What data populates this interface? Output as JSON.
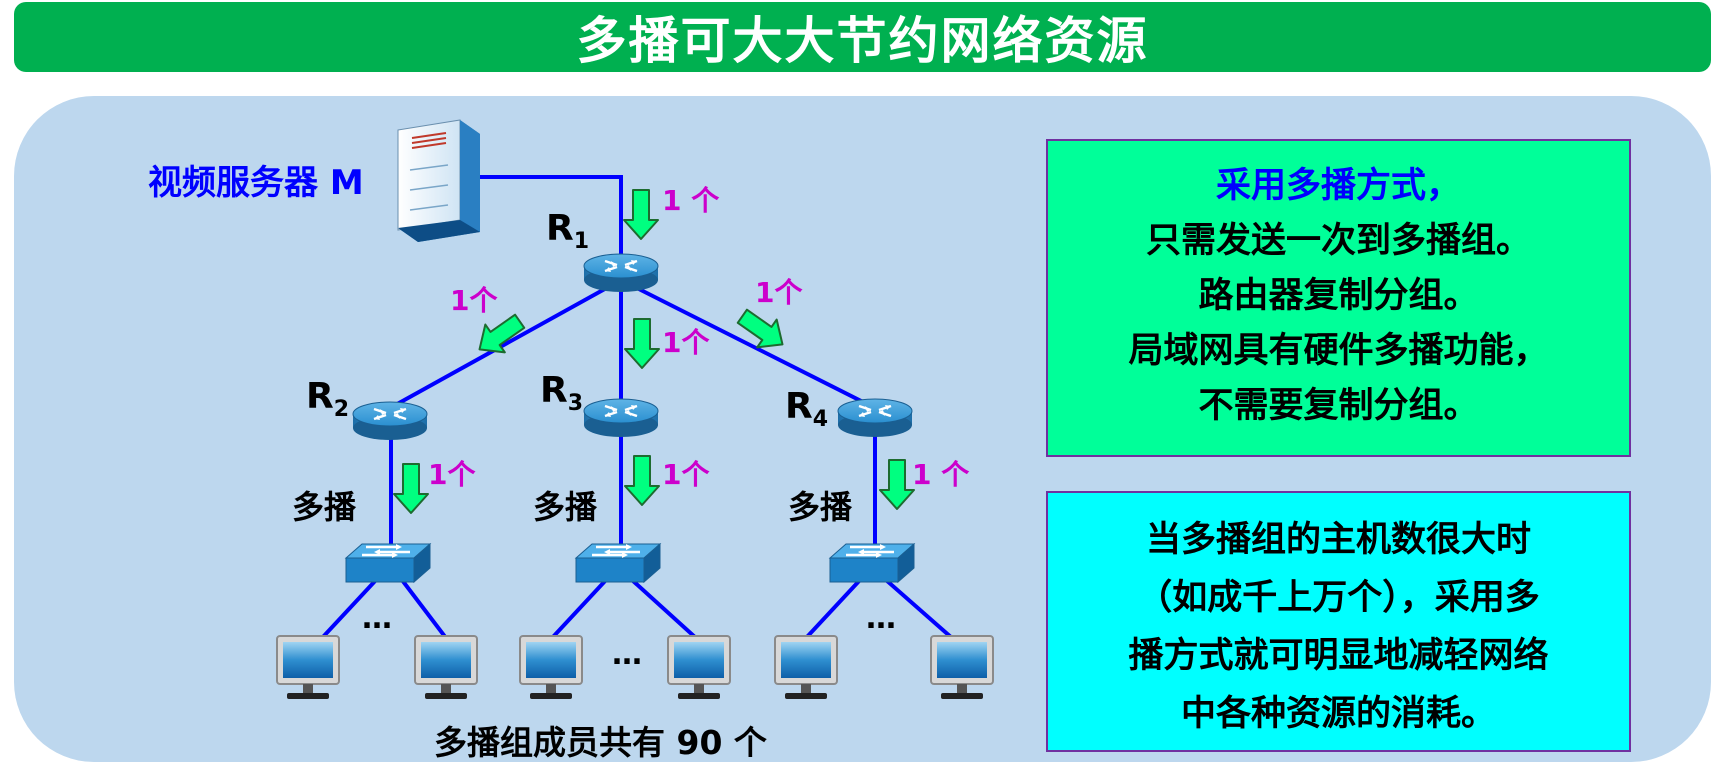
{
  "title": "多播可大大节约网络资源",
  "server_label": "视频服务器 M",
  "routers": {
    "r1": {
      "letter": "R",
      "sub": "1"
    },
    "r2": {
      "letter": "R",
      "sub": "2"
    },
    "r3": {
      "letter": "R",
      "sub": "3"
    },
    "r4": {
      "letter": "R",
      "sub": "4"
    }
  },
  "packet_labels": {
    "m_r1": "1 个",
    "r1_r2": "1个",
    "r1_r3": "1个",
    "r1_r4": "1个",
    "r2_sw": "1个",
    "r3_sw": "1个",
    "r4_sw": "1 个"
  },
  "multicast_labels": [
    "多播",
    "多播",
    "多播"
  ],
  "ellipsis": "…",
  "members_label": "多播组成员共有 90 个",
  "info_top": {
    "line1": "采用多播方式，",
    "line2": "只需发送一次到多播组。",
    "line3": "路由器复制分组。",
    "line4": "局域网具有硬件多播功能，",
    "line5": "不需要复制分组。"
  },
  "info_bottom": {
    "line1": "当多播组的主机数很大时",
    "line2": "（如成千上万个），采用多",
    "line3": "播方式就可明显地减轻网络",
    "line4": "中各种资源的消耗。"
  },
  "colors": {
    "title_bg": "#00b050",
    "panel_bg": "#bdd7ee",
    "link": "#0000ff",
    "arrow": "#00ff80",
    "packet_text": "#cc00cc",
    "top_box": "#00ff99",
    "bottom_box": "#00ffff"
  },
  "icons": [
    "server-icon",
    "router-icon",
    "switch-icon",
    "monitor-icon",
    "down-arrow-icon"
  ]
}
